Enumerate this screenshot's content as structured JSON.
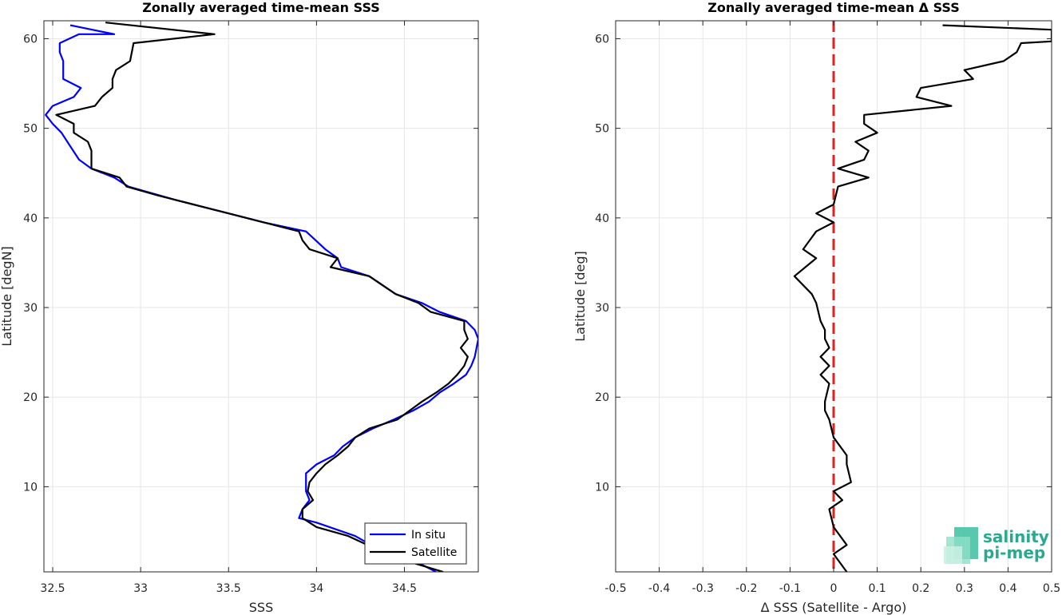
{
  "chart_data": [
    {
      "type": "line",
      "title": "Zonally averaged time-mean SSS",
      "xlabel": "SSS",
      "ylabel": "Latitude [degN]",
      "xlim": [
        32.45,
        34.92
      ],
      "ylim": [
        0.5,
        62
      ],
      "xticks": [
        "32.5",
        "33",
        "33.5",
        "34",
        "34.5"
      ],
      "xtick_values": [
        32.5,
        33,
        33.5,
        34,
        34.5
      ],
      "yticks": [
        "10",
        "20",
        "30",
        "40",
        "50",
        "60"
      ],
      "ytick_values": [
        10,
        20,
        30,
        40,
        50,
        60
      ],
      "grid": true,
      "legend_position": "bottom-right",
      "series": [
        {
          "name": "In situ",
          "color": "#0000ff",
          "points": [
            [
              34.68,
              0.5
            ],
            [
              34.58,
              1.5
            ],
            [
              34.4,
              2.5
            ],
            [
              34.22,
              4.5
            ],
            [
              34.0,
              6.0
            ],
            [
              33.9,
              6.5
            ],
            [
              33.92,
              7.5
            ],
            [
              33.96,
              8.5
            ],
            [
              33.94,
              9.5
            ],
            [
              33.94,
              10.5
            ],
            [
              33.94,
              11.5
            ],
            [
              34.0,
              12.5
            ],
            [
              34.1,
              13.5
            ],
            [
              34.15,
              14.5
            ],
            [
              34.22,
              15.5
            ],
            [
              34.32,
              16.5
            ],
            [
              34.44,
              17.5
            ],
            [
              34.55,
              18.5
            ],
            [
              34.64,
              19.5
            ],
            [
              34.7,
              20.5
            ],
            [
              34.78,
              21.5
            ],
            [
              34.85,
              22.5
            ],
            [
              34.88,
              23.5
            ],
            [
              34.9,
              24.5
            ],
            [
              34.92,
              26.5
            ],
            [
              34.9,
              27.5
            ],
            [
              34.85,
              28.5
            ],
            [
              34.7,
              29.5
            ],
            [
              34.6,
              30.5
            ],
            [
              34.45,
              31.5
            ],
            [
              34.3,
              33.5
            ],
            [
              34.14,
              34.5
            ],
            [
              34.12,
              35.5
            ],
            [
              34.05,
              36.5
            ],
            [
              33.94,
              38.5
            ],
            [
              33.7,
              39.5
            ],
            [
              33.5,
              40.5
            ],
            [
              33.2,
              42.0
            ],
            [
              32.93,
              43.5
            ],
            [
              32.85,
              44.5
            ],
            [
              32.72,
              45.5
            ],
            [
              32.65,
              46.5
            ],
            [
              32.6,
              48.0
            ],
            [
              32.55,
              49.5
            ],
            [
              32.5,
              50.5
            ],
            [
              32.46,
              51.5
            ],
            [
              32.5,
              52.5
            ],
            [
              32.62,
              53.5
            ],
            [
              32.66,
              54.5
            ],
            [
              32.56,
              55.5
            ],
            [
              32.56,
              57.5
            ],
            [
              32.54,
              58.5
            ],
            [
              32.54,
              59.5
            ],
            [
              32.65,
              60.5
            ],
            [
              32.85,
              60.5
            ],
            [
              32.6,
              61.5
            ]
          ]
        },
        {
          "name": "Satellite",
          "color": "#000000",
          "points": [
            [
              34.72,
              0.5
            ],
            [
              34.55,
              1.5
            ],
            [
              34.4,
              2.5
            ],
            [
              34.18,
              4.5
            ],
            [
              34.0,
              5.5
            ],
            [
              33.92,
              6.5
            ],
            [
              33.92,
              7.5
            ],
            [
              33.98,
              8.5
            ],
            [
              33.95,
              9.5
            ],
            [
              33.96,
              10.5
            ],
            [
              34.0,
              11.5
            ],
            [
              34.05,
              12.5
            ],
            [
              34.12,
              13.5
            ],
            [
              34.18,
              14.5
            ],
            [
              34.22,
              15.5
            ],
            [
              34.3,
              16.5
            ],
            [
              34.46,
              17.5
            ],
            [
              34.53,
              18.5
            ],
            [
              34.6,
              19.5
            ],
            [
              34.68,
              20.5
            ],
            [
              34.75,
              21.5
            ],
            [
              34.8,
              22.5
            ],
            [
              34.84,
              23.5
            ],
            [
              34.86,
              24.5
            ],
            [
              34.82,
              25.5
            ],
            [
              34.86,
              26.5
            ],
            [
              34.84,
              27.5
            ],
            [
              34.84,
              28.5
            ],
            [
              34.65,
              29.5
            ],
            [
              34.58,
              30.5
            ],
            [
              34.45,
              31.5
            ],
            [
              34.3,
              33.5
            ],
            [
              34.08,
              34.5
            ],
            [
              34.12,
              35.5
            ],
            [
              33.96,
              36.5
            ],
            [
              33.92,
              37.5
            ],
            [
              33.9,
              38.5
            ],
            [
              33.7,
              39.5
            ],
            [
              33.5,
              40.5
            ],
            [
              33.3,
              41.5
            ],
            [
              33.1,
              42.5
            ],
            [
              32.92,
              43.5
            ],
            [
              32.88,
              44.5
            ],
            [
              32.72,
              45.5
            ],
            [
              32.72,
              46.5
            ],
            [
              32.72,
              47.5
            ],
            [
              32.7,
              48.5
            ],
            [
              32.62,
              49.5
            ],
            [
              32.62,
              50.5
            ],
            [
              32.52,
              51.5
            ],
            [
              32.74,
              52.5
            ],
            [
              32.78,
              53.5
            ],
            [
              32.84,
              54.5
            ],
            [
              32.84,
              55.5
            ],
            [
              32.86,
              56.5
            ],
            [
              32.94,
              57.5
            ],
            [
              32.96,
              59.5
            ],
            [
              33.42,
              60.5
            ],
            [
              32.8,
              61.8
            ]
          ]
        }
      ]
    },
    {
      "type": "line",
      "title": "Zonally averaged time-mean Δ SSS",
      "xlabel": "Δ SSS (Satellite - Argo)",
      "ylabel": "Latitude [deg]",
      "xlim": [
        -0.5,
        0.5
      ],
      "ylim": [
        0.5,
        62
      ],
      "xticks": [
        "-0.5",
        "-0.4",
        "-0.3",
        "-0.2",
        "-0.1",
        "0",
        "0.1",
        "0.2",
        "0.3",
        "0.4",
        "0.5"
      ],
      "xtick_values": [
        -0.5,
        -0.4,
        -0.3,
        -0.2,
        -0.1,
        0,
        0.1,
        0.2,
        0.3,
        0.4,
        0.5
      ],
      "yticks": [
        "10",
        "20",
        "30",
        "40",
        "50",
        "60"
      ],
      "ytick_values": [
        10,
        20,
        30,
        40,
        50,
        60
      ],
      "grid": true,
      "reference_line": {
        "x": 0,
        "color": "#dd2222",
        "style": "dashed"
      },
      "series": [
        {
          "color": "#000000",
          "points": [
            [
              0.03,
              0.5
            ],
            [
              0.0,
              2.5
            ],
            [
              0.03,
              3.5
            ],
            [
              0.0,
              5.5
            ],
            [
              -0.01,
              7.5
            ],
            [
              0.02,
              8.5
            ],
            [
              0.0,
              9.5
            ],
            [
              0.04,
              10.5
            ],
            [
              0.03,
              12.5
            ],
            [
              0.03,
              13.5
            ],
            [
              0.0,
              15.5
            ],
            [
              -0.01,
              17.5
            ],
            [
              -0.02,
              18.5
            ],
            [
              -0.02,
              19.5
            ],
            [
              -0.01,
              21.5
            ],
            [
              -0.03,
              22.5
            ],
            [
              -0.01,
              23.5
            ],
            [
              -0.03,
              24.5
            ],
            [
              -0.01,
              25.5
            ],
            [
              -0.02,
              26.5
            ],
            [
              -0.02,
              27.5
            ],
            [
              -0.03,
              28.5
            ],
            [
              -0.04,
              30.5
            ],
            [
              -0.05,
              31.5
            ],
            [
              -0.09,
              33.5
            ],
            [
              -0.04,
              35.5
            ],
            [
              -0.07,
              36.5
            ],
            [
              -0.04,
              38.5
            ],
            [
              0.0,
              39.5
            ],
            [
              -0.04,
              40.5
            ],
            [
              0.0,
              41.5
            ],
            [
              0.01,
              43.5
            ],
            [
              0.08,
              44.5
            ],
            [
              0.01,
              45.5
            ],
            [
              0.07,
              46.5
            ],
            [
              0.08,
              47.5
            ],
            [
              0.05,
              48.5
            ],
            [
              0.1,
              49.5
            ],
            [
              0.07,
              50.5
            ],
            [
              0.07,
              51.5
            ],
            [
              0.27,
              52.5
            ],
            [
              0.19,
              53.5
            ],
            [
              0.2,
              54.5
            ],
            [
              0.32,
              55.5
            ],
            [
              0.3,
              56.5
            ],
            [
              0.39,
              57.5
            ],
            [
              0.42,
              58.5
            ],
            [
              0.43,
              59.5
            ],
            [
              0.5,
              59.7
            ],
            [
              0.5,
              61.0
            ],
            [
              0.25,
              61.5
            ]
          ]
        }
      ]
    }
  ],
  "legend": {
    "items": [
      "In situ",
      "Satellite"
    ]
  },
  "logo": {
    "line1": "salinity",
    "line2": "pi-mep"
  }
}
